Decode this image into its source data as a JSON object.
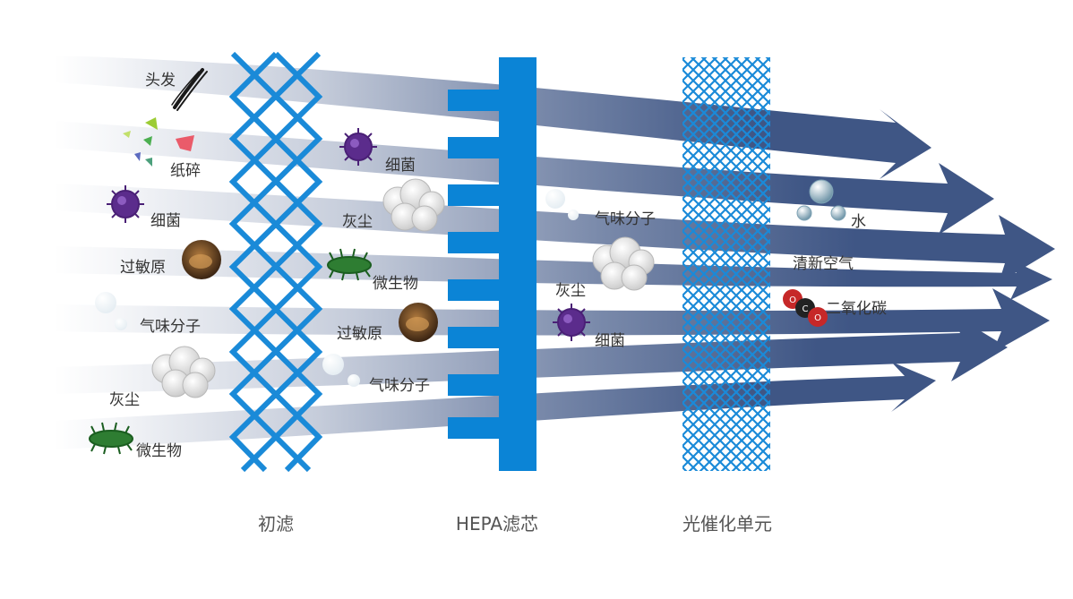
{
  "stages": {
    "pre_filter": "初滤",
    "hepa": "HEPA滤芯",
    "photocatalyst": "光催化单元"
  },
  "labels": {
    "hair": "头发",
    "paper": "纸碎",
    "bacteria_1": "细菌",
    "allergen_1": "过敏原",
    "odor_1": "气味分子",
    "dust_1": "灰尘",
    "microbe_1": "微生物",
    "bacteria_2": "细菌",
    "dust_2": "灰尘",
    "microbe_2": "微生物",
    "allergen_2": "过敏原",
    "odor_2": "气味分子",
    "odor_3": "气味分子",
    "dust_3": "灰尘",
    "bacteria_3": "细菌",
    "water": "水",
    "fresh_air": "清新空气",
    "co2": "二氧化碳"
  },
  "molecule_letters": {
    "o_left": "O",
    "c": "C",
    "o_right": "O"
  },
  "colors": {
    "flow": "#3f5685",
    "filter_blue": "#1a8ad8",
    "hepa_blue": "#0b84d6",
    "bacteria": "#5b2c8c",
    "microbe": "#2e7d32",
    "allergen": "#8a5a2b",
    "co2_red": "#c62828"
  }
}
